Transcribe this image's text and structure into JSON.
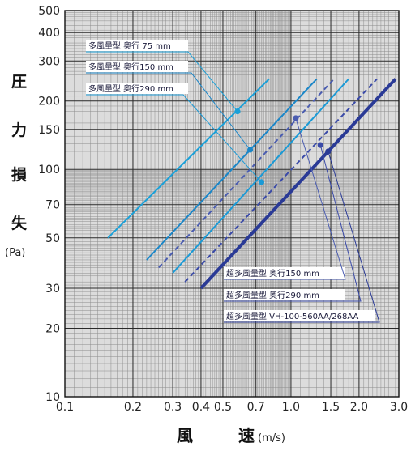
{
  "chart_data": {
    "type": "line",
    "x_scale": "log",
    "y_scale": "log",
    "xlim": [
      0.1,
      3.0
    ],
    "ylim": [
      10,
      500
    ],
    "grid": true,
    "xlabel": "風　速",
    "xunit": "(m/s)",
    "ylabel": [
      "圧",
      "力",
      "損",
      "失"
    ],
    "yunit": "(Pa)",
    "x_ticks": [
      {
        "v": 0.1,
        "label": "0.1"
      },
      {
        "v": 0.2,
        "label": "0.2"
      },
      {
        "v": 0.3,
        "label": "0.3"
      },
      {
        "v": 0.4,
        "label": "0.4"
      },
      {
        "v": 0.5,
        "label": "0.5"
      },
      {
        "v": 0.7,
        "label": "0.7"
      },
      {
        "v": 1.0,
        "label": "1.0"
      },
      {
        "v": 1.5,
        "label": "1.5"
      },
      {
        "v": 2.0,
        "label": "2.0"
      },
      {
        "v": 3.0,
        "label": "3.0"
      }
    ],
    "y_ticks": [
      {
        "v": 10,
        "label": "10"
      },
      {
        "v": 20,
        "label": "20"
      },
      {
        "v": 30,
        "label": "30"
      },
      {
        "v": 50,
        "label": "50"
      },
      {
        "v": 70,
        "label": "70"
      },
      {
        "v": 100,
        "label": "100"
      },
      {
        "v": 150,
        "label": "150"
      },
      {
        "v": 200,
        "label": "200"
      },
      {
        "v": 300,
        "label": "300"
      },
      {
        "v": 400,
        "label": "400"
      },
      {
        "v": 500,
        "label": "500"
      }
    ],
    "series": [
      {
        "name": "多風量型  奥行 75 mm",
        "color": "#1aa0d8",
        "dash": false,
        "weight": 2,
        "x": [
          0.155,
          0.8
        ],
        "y": [
          50,
          250
        ],
        "marker": {
          "x": 0.58,
          "y": 180
        }
      },
      {
        "name": "多風量型  奥行150 mm",
        "color": "#1a86c8",
        "dash": false,
        "weight": 2,
        "x": [
          0.23,
          1.3
        ],
        "y": [
          40,
          250
        ],
        "marker": {
          "x": 0.66,
          "y": 122
        }
      },
      {
        "name": null,
        "color": "#4a5cb0",
        "dash": true,
        "weight": 2,
        "x": [
          0.26,
          1.55
        ],
        "y": [
          37,
          250
        ],
        "marker": {
          "x": 1.05,
          "y": 168
        }
      },
      {
        "name": "多風量型  奥行290 mm",
        "color": "#1a9ad6",
        "dash": false,
        "weight": 2,
        "x": [
          0.3,
          1.8
        ],
        "y": [
          35,
          250
        ],
        "marker": {
          "x": 0.74,
          "y": 88
        }
      },
      {
        "name": "超多風量型  奥行290 mm",
        "color": "#3a4aa8",
        "dash": true,
        "weight": 2,
        "x": [
          0.34,
          2.4
        ],
        "y": [
          32,
          250
        ],
        "marker": {
          "x": 1.35,
          "y": 128
        }
      },
      {
        "name": "超多風量型  VH-100-560AA/268AA",
        "color": "#2a3a96",
        "dash": false,
        "weight": 4,
        "x": [
          0.4,
          2.9
        ],
        "y": [
          30,
          250
        ],
        "marker": {
          "x": 1.46,
          "y": 120
        }
      }
    ],
    "legend_top": [
      {
        "label": "多風量型  奥行 75 mm"
      },
      {
        "label": "多風量型  奥行150 mm"
      },
      {
        "label": "多風量型  奥行290 mm"
      }
    ],
    "legend_bottom": [
      {
        "label": "超多風量型  奥行150 mm"
      },
      {
        "label": "超多風量型  奥行290 mm"
      },
      {
        "label": "超多風量型  VH-100-560AA/268AA"
      }
    ]
  }
}
